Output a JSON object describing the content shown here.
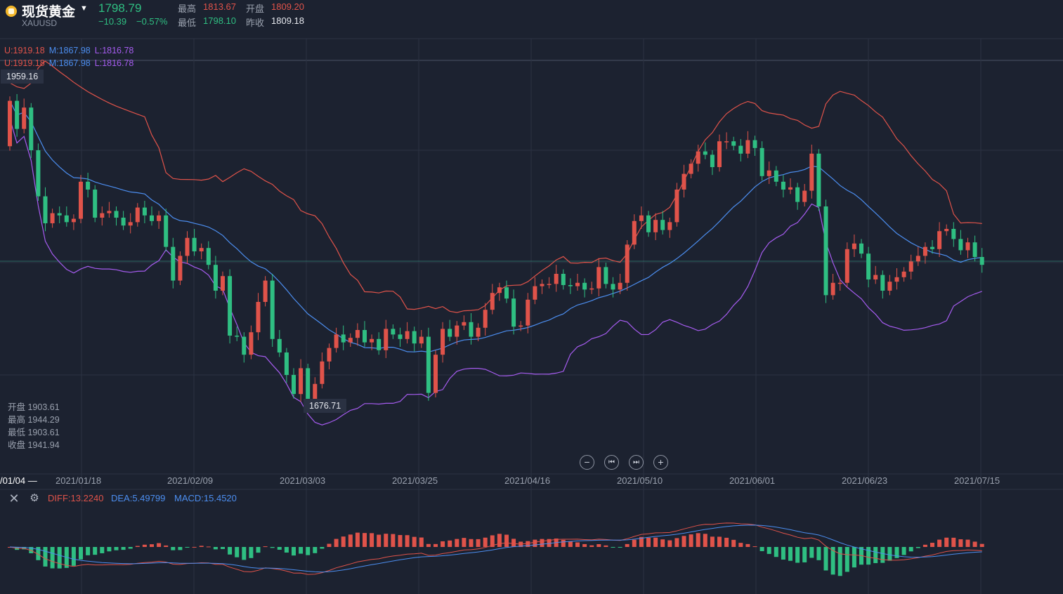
{
  "header": {
    "title": "现货黄金",
    "symbol": "XAUUSD",
    "last_price": "1798.79",
    "change": "−10.39",
    "change_pct": "−0.57%",
    "high_label": "最高",
    "high_value": "1813.67",
    "open_label": "开盘",
    "open_value": "1809.20",
    "low_label": "最低",
    "low_value": "1798.10",
    "prev_close_label": "昨收",
    "prev_close_value": "1809.18"
  },
  "boll": {
    "upper": "U:1919.18",
    "mid": "M:1867.98",
    "lower": "L:1816.78"
  },
  "price_tags": {
    "max": "1959.16",
    "min": "1676.71"
  },
  "ohlc_panel": {
    "open": "开盘 1903.61",
    "high": "最高 1944.29",
    "low": "最低 1903.61",
    "close": "收盘 1941.94"
  },
  "dates": [
    "/01/04 —",
    "2021/01/18",
    "2021/02/09",
    "2021/03/03",
    "2021/03/25",
    "2021/04/16",
    "2021/05/10",
    "2021/06/01",
    "2021/06/23",
    "2021/07/15"
  ],
  "macd": {
    "diff": "DIFF:13.2240",
    "dea": "DEA:5.49799",
    "macd": "MACD:15.4520"
  },
  "controls": {
    "zoom_out": "−",
    "first": "⏮",
    "last": "⏭",
    "zoom_in": "+"
  },
  "colors": {
    "up": "#e0534a",
    "down": "#2fbf82",
    "upper_band": "#e0534a",
    "mid_band": "#4c8ef0",
    "lower_band": "#a65cf0",
    "background": "#1c2230"
  },
  "chart_data": {
    "type": "candlestick",
    "x_start": "2021/01/04",
    "x_end": "2021/07/19",
    "price_range_visible": [
      1650,
      2000
    ],
    "closes": [
      1944,
      1919,
      1938,
      1900,
      1859,
      1835,
      1844,
      1842,
      1836,
      1839,
      1872,
      1865,
      1840,
      1844,
      1846,
      1840,
      1833,
      1836,
      1849,
      1842,
      1837,
      1842,
      1814,
      1784,
      1806,
      1822,
      1810,
      1813,
      1798,
      1775,
      1788,
      1735,
      1734,
      1718,
      1738,
      1765,
      1784,
      1732,
      1720,
      1700,
      1683,
      1706,
      1676,
      1692,
      1712,
      1724,
      1736,
      1729,
      1733,
      1740,
      1729,
      1732,
      1722,
      1741,
      1736,
      1732,
      1739,
      1728,
      1734,
      1684,
      1718,
      1741,
      1734,
      1744,
      1747,
      1734,
      1742,
      1758,
      1773,
      1778,
      1768,
      1743,
      1744,
      1767,
      1779,
      1781,
      1781,
      1790,
      1780,
      1779,
      1782,
      1776,
      1777,
      1796,
      1781,
      1776,
      1782,
      1816,
      1837,
      1842,
      1827,
      1838,
      1829,
      1836,
      1865,
      1879,
      1888,
      1899,
      1896,
      1885,
      1908,
      1908,
      1904,
      1897,
      1909,
      1902,
      1877,
      1882,
      1872,
      1865,
      1867,
      1854,
      1864,
      1897,
      1850,
      1771,
      1782,
      1782,
      1812,
      1817,
      1808,
      1785,
      1789,
      1775,
      1783,
      1787,
      1792,
      1801,
      1806,
      1814,
      1812,
      1828,
      1830,
      1821,
      1811,
      1818,
      1805,
      1798
    ],
    "boll_last": {
      "upper": 1919.18,
      "mid": 1867.98,
      "lower": 1816.78
    },
    "annotations": {
      "high": 1959.16,
      "low": 1676.71
    }
  }
}
